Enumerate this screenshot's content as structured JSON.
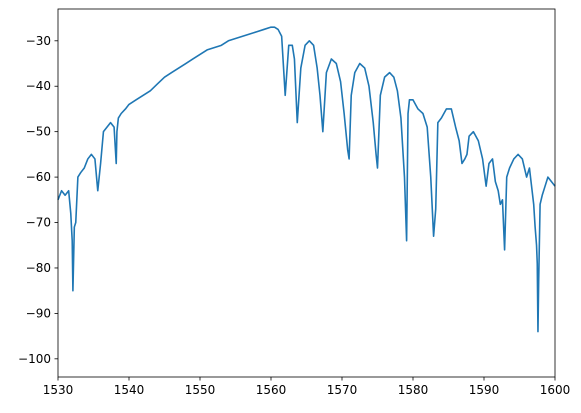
{
  "chart_data": {
    "type": "line",
    "title": "",
    "xlabel": "",
    "ylabel": "",
    "xlim": [
      1530,
      1600
    ],
    "ylim": [
      -104,
      -23
    ],
    "grid": false,
    "legend": "none",
    "x_ticks": [
      1530,
      1540,
      1550,
      1560,
      1570,
      1580,
      1590,
      1600
    ],
    "y_ticks": [
      -30,
      -40,
      -50,
      -60,
      -70,
      -80,
      -90,
      -100
    ],
    "series": [
      {
        "color": "#1f77b4",
        "x": [
          1530.0,
          1530.5,
          1531.0,
          1531.5,
          1531.8,
          1532.0,
          1532.1,
          1532.3,
          1532.5,
          1532.8,
          1533.2,
          1533.7,
          1534.2,
          1534.7,
          1535.2,
          1535.6,
          1536.0,
          1536.4,
          1536.9,
          1537.4,
          1537.9,
          1538.2,
          1538.3,
          1538.5,
          1538.9,
          1539.5,
          1540.0,
          1541.0,
          1542.0,
          1543.0,
          1544.0,
          1545.0,
          1546.0,
          1547.0,
          1548.0,
          1549.0,
          1550.0,
          1551.0,
          1552.0,
          1553.0,
          1554.0,
          1555.0,
          1556.0,
          1557.0,
          1558.0,
          1559.0,
          1560.0,
          1560.5,
          1561.0,
          1561.5,
          1562.0,
          1562.5,
          1563.0,
          1563.3,
          1563.7,
          1564.2,
          1564.8,
          1565.4,
          1566.0,
          1566.5,
          1566.9,
          1567.3,
          1567.8,
          1568.5,
          1569.2,
          1569.8,
          1570.3,
          1570.8,
          1571.0,
          1571.3,
          1571.8,
          1572.5,
          1573.2,
          1573.8,
          1574.4,
          1574.8,
          1575.0,
          1575.4,
          1576.0,
          1576.7,
          1577.3,
          1577.8,
          1578.3,
          1578.8,
          1579.1,
          1579.3,
          1579.5,
          1580.0,
          1580.7,
          1581.4,
          1582.0,
          1582.5,
          1582.9,
          1583.2,
          1583.5,
          1584.0,
          1584.7,
          1585.4,
          1586.0,
          1586.5,
          1586.9,
          1587.3,
          1587.6,
          1587.9,
          1588.5,
          1589.2,
          1589.8,
          1590.3,
          1590.7,
          1591.2,
          1591.6,
          1592.0,
          1592.3,
          1592.6,
          1592.9,
          1593.2,
          1593.6,
          1594.2,
          1594.8,
          1595.4,
          1596.0,
          1596.4,
          1596.7,
          1597.0,
          1597.2,
          1597.4,
          1597.5,
          1597.6,
          1597.7,
          1597.9,
          1598.2,
          1598.6,
          1599.0,
          1599.5,
          1600.0
        ],
        "y": [
          -65,
          -63,
          -64,
          -63,
          -68,
          -74,
          -85,
          -71,
          -70,
          -60,
          -59,
          -58,
          -56,
          -55,
          -56,
          -63,
          -57,
          -50,
          -49,
          -48,
          -49,
          -57,
          -50,
          -47,
          -46,
          -45,
          -44,
          -43,
          -42,
          -41,
          -39.5,
          -38,
          -37,
          -36,
          -35,
          -34,
          -33,
          -32,
          -31.5,
          -31,
          -30,
          -29.5,
          -29,
          -28.5,
          -28,
          -27.5,
          -27,
          -27,
          -27.5,
          -29,
          -42,
          -31,
          -31,
          -34,
          -48,
          -36,
          -31,
          -30,
          -31,
          -36,
          -42,
          -50,
          -37,
          -34,
          -35,
          -39,
          -46,
          -54,
          -56,
          -42,
          -37,
          -35,
          -36,
          -40,
          -48,
          -55,
          -58,
          -42,
          -38,
          -37,
          -38,
          -41,
          -47,
          -60,
          -74,
          -46,
          -43,
          -43,
          -45,
          -46,
          -49,
          -60,
          -73,
          -67,
          -48,
          -47,
          -45,
          -45,
          -49,
          -52,
          -57,
          -56,
          -55,
          -51,
          -50,
          -52,
          -56,
          -62,
          -57,
          -56,
          -61,
          -63,
          -66,
          -65,
          -76,
          -60,
          -58,
          -56,
          -55,
          -56,
          -60,
          -58,
          -62,
          -66,
          -71,
          -75,
          -79,
          -94,
          -83,
          -66,
          -64,
          -62,
          -60,
          -61,
          -62
        ]
      }
    ]
  }
}
